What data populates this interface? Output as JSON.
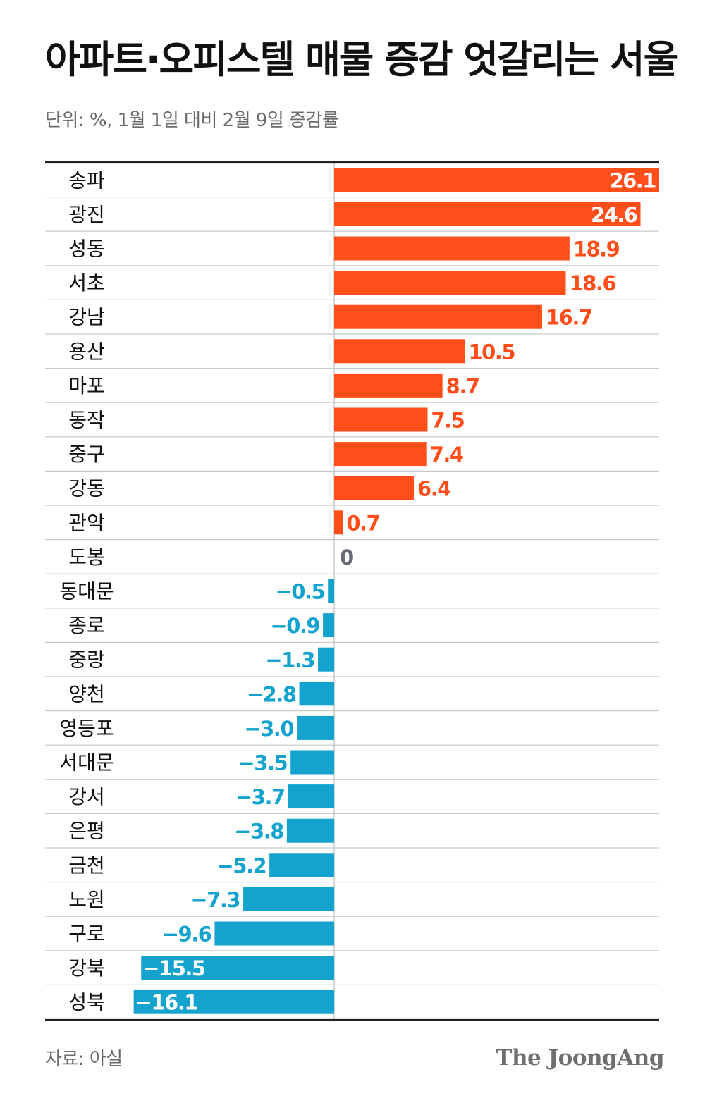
{
  "header": {
    "title": "아파트·오피스텔 매물 증감 엇갈리는 서울",
    "subtitle": "단위: %, 1월 1일 대비 2월 9일 증감률"
  },
  "footer": {
    "source": "자료: 아실",
    "logo": "The JoongAng"
  },
  "colors": {
    "positive": "#ff4e1a",
    "negative": "#14a3cf",
    "zero": "#666b75",
    "inside_label": "#ffffff",
    "rule": "#222222",
    "grid": "#c9c9c9"
  },
  "chart_data": {
    "type": "bar",
    "orientation": "horizontal",
    "title": "아파트·오피스텔 매물 증감 엇갈리는 서울",
    "subtitle": "단위: %, 1월 1일 대비 2월 9일 증감률",
    "unit": "%",
    "xlim": [
      -16.1,
      26.1
    ],
    "categories": [
      "송파",
      "광진",
      "성동",
      "서초",
      "강남",
      "용산",
      "마포",
      "동작",
      "중구",
      "강동",
      "관악",
      "도봉",
      "동대문",
      "종로",
      "중랑",
      "양천",
      "영등포",
      "서대문",
      "강서",
      "은평",
      "금천",
      "노원",
      "구로",
      "강북",
      "성북"
    ],
    "values": [
      26.1,
      24.6,
      18.9,
      18.6,
      16.7,
      10.5,
      8.7,
      7.5,
      7.4,
      6.4,
      0.7,
      0,
      -0.5,
      -0.9,
      -1.3,
      -2.8,
      -3.0,
      -3.5,
      -3.7,
      -3.8,
      -5.2,
      -7.3,
      -9.6,
      -15.5,
      -16.1
    ],
    "labels": [
      "26.1",
      "24.6",
      "18.9",
      "18.6",
      "16.7",
      "10.5",
      "8.7",
      "7.5",
      "7.4",
      "6.4",
      "0.7",
      "0",
      "−0.5",
      "−0.9",
      "−1.3",
      "−2.8",
      "−3.0",
      "−3.5",
      "−3.7",
      "−3.8",
      "−5.2",
      "−7.3",
      "−9.6",
      "−15.5",
      "−16.1"
    ],
    "labels_inside": [
      true,
      true,
      false,
      false,
      false,
      false,
      false,
      false,
      false,
      false,
      false,
      false,
      false,
      false,
      false,
      false,
      false,
      false,
      false,
      false,
      false,
      false,
      false,
      true,
      true
    ],
    "source": "자료: 아실"
  }
}
